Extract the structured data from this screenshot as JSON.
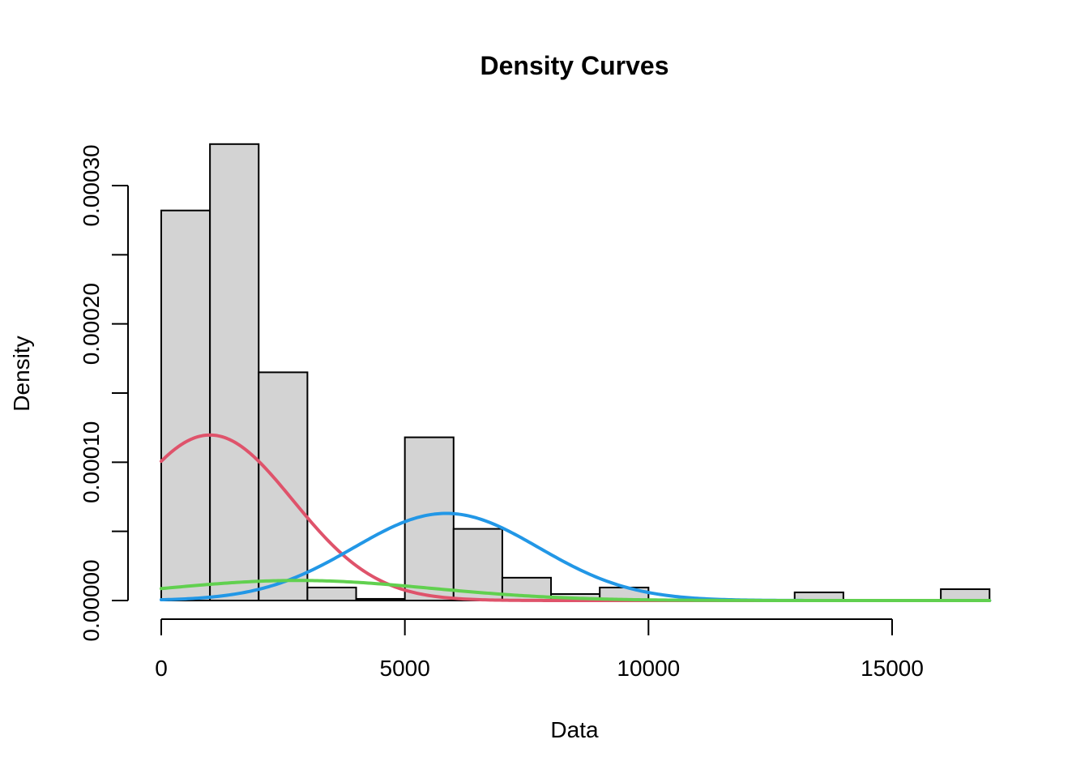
{
  "chart_data": {
    "type": "bar",
    "title": "Density Curves",
    "xlabel": "Data",
    "ylabel": "Density",
    "xlim": [
      0,
      17000
    ],
    "ylim": [
      0,
      0.0003
    ],
    "x_ticks": [
      0,
      5000,
      10000,
      15000
    ],
    "x_tick_labels": [
      "0",
      "5000",
      "10000",
      "15000"
    ],
    "y_ticks": [
      0,
      5e-05,
      0.0001,
      0.00015,
      0.0002,
      0.00025,
      0.0003
    ],
    "y_tick_labels": [
      "0.00000",
      "",
      "0.00010",
      "",
      "0.00020",
      "",
      "0.00030"
    ],
    "histogram": {
      "bin_width": 1000,
      "bins": [
        {
          "start": 0,
          "end": 1000,
          "density": 0.000282
        },
        {
          "start": 1000,
          "end": 2000,
          "density": 0.00033
        },
        {
          "start": 2000,
          "end": 3000,
          "density": 0.000165
        },
        {
          "start": 3000,
          "end": 4000,
          "density": 9.4e-06
        },
        {
          "start": 4000,
          "end": 5000,
          "density": 1.2e-06
        },
        {
          "start": 5000,
          "end": 6000,
          "density": 0.000118
        },
        {
          "start": 6000,
          "end": 7000,
          "density": 5.18e-05
        },
        {
          "start": 7000,
          "end": 8000,
          "density": 1.65e-05
        },
        {
          "start": 8000,
          "end": 9000,
          "density": 4.7e-06
        },
        {
          "start": 9000,
          "end": 10000,
          "density": 9.4e-06
        },
        {
          "start": 10000,
          "end": 11000,
          "density": 0
        },
        {
          "start": 11000,
          "end": 12000,
          "density": 0
        },
        {
          "start": 12000,
          "end": 13000,
          "density": 0
        },
        {
          "start": 13000,
          "end": 14000,
          "density": 5.9e-06
        },
        {
          "start": 14000,
          "end": 15000,
          "density": 0
        },
        {
          "start": 15000,
          "end": 16000,
          "density": 0
        },
        {
          "start": 16000,
          "end": 17000,
          "density": 8.2e-06
        }
      ],
      "fill": "#d3d3d3",
      "stroke": "#000000"
    },
    "series": [
      {
        "type": "line",
        "color": "#df536b",
        "mean": 1000,
        "sd": 1700,
        "weight": 0.51
      },
      {
        "type": "line",
        "color": "#2297e6",
        "mean": 5850,
        "sd": 1900,
        "weight": 0.3
      },
      {
        "type": "line",
        "color": "#61d04f",
        "mean": 2800,
        "sd": 2750,
        "weight": 0.1
      }
    ],
    "grid": false,
    "legend": "none"
  }
}
